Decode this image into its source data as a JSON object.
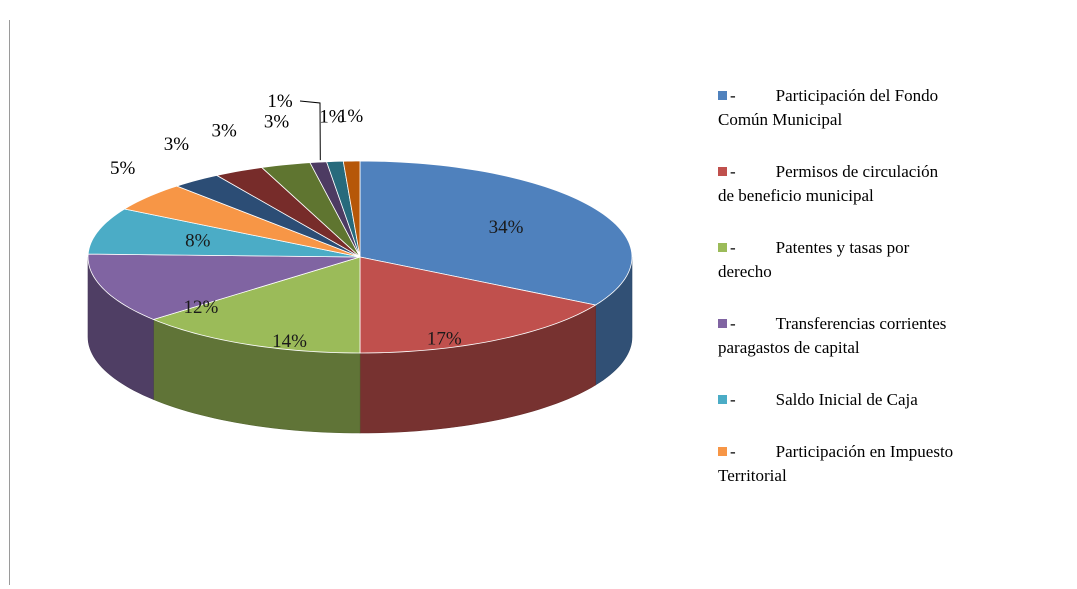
{
  "chart_data": {
    "type": "pie",
    "title": "",
    "slices": [
      {
        "label": "Participación del Fondo Común Municipal",
        "value": 34,
        "display": "34%",
        "color": "#4f81bd"
      },
      {
        "label": "Permisos de circulación de beneficio municipal",
        "value": 17,
        "display": "17%",
        "color": "#c0504d"
      },
      {
        "label": "Patentes y tasas por derecho",
        "value": 14,
        "display": "14%",
        "color": "#9bbb59"
      },
      {
        "label": "Transferencias corrientes paragastos de capital",
        "value": 12,
        "display": "12%",
        "color": "#8064a2"
      },
      {
        "label": "Saldo Inicial de Caja",
        "value": 8,
        "display": "8%",
        "color": "#4bacc6"
      },
      {
        "label": "Participación en Impuesto Territorial",
        "value": 5,
        "display": "5%",
        "color": "#f79646"
      },
      {
        "label": "",
        "value": 3,
        "display": "3%",
        "color": "#2c4d75"
      },
      {
        "label": "",
        "value": 3,
        "display": "3%",
        "color": "#772c2a"
      },
      {
        "label": "",
        "value": 3,
        "display": "3%",
        "color": "#5f7530"
      },
      {
        "label": "",
        "value": 1,
        "display": "1%",
        "color": "#4d3b62"
      },
      {
        "label": "",
        "value": 1,
        "display": "1%",
        "color": "#276a7c"
      },
      {
        "label": "",
        "value": 1,
        "display": "1%",
        "color": "#b65708"
      }
    ],
    "legend_position": "right"
  },
  "legend": [
    {
      "marker": "-",
      "line1": "Participación del Fondo",
      "line2": "Común Municipal",
      "color": "#4f81bd"
    },
    {
      "marker": "-",
      "line1": "Permisos de circulación",
      "line2": "de beneficio municipal",
      "color": "#c0504d"
    },
    {
      "marker": "-",
      "line1": "Patentes y tasas por",
      "line2": "derecho",
      "color": "#9bbb59"
    },
    {
      "marker": "-",
      "line1": "Transferencias corrientes",
      "line2": "paragastos de capital",
      "color": "#8064a2"
    },
    {
      "marker": "-",
      "line1": "Saldo Inicial de Caja",
      "line2": "",
      "color": "#4bacc6"
    },
    {
      "marker": "-",
      "line1": "Participación en Impuesto",
      "line2": "Territorial",
      "color": "#f79646"
    }
  ]
}
